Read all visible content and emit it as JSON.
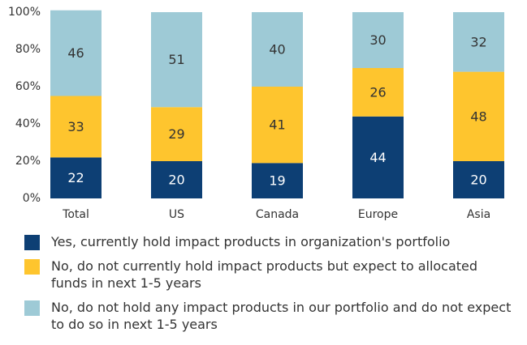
{
  "chart_data": {
    "type": "stacked_bar",
    "categories": [
      "Total",
      "US",
      "Canada",
      "Europe",
      "Asia"
    ],
    "series": [
      {
        "name": "Yes, currently hold impact products in organization's portfolio",
        "color": "#0d3f74",
        "values": [
          22,
          20,
          19,
          44,
          20
        ]
      },
      {
        "name": "No, do not currently hold impact products but expect to allocated funds in next 1-5 years",
        "color": "#fec52e",
        "values": [
          33,
          29,
          41,
          26,
          48
        ]
      },
      {
        "name": "No, do not hold any impact products in our portfolio and do not expect to do so in next 1-5 years",
        "color": "#9ecad6",
        "values": [
          46,
          51,
          40,
          30,
          32
        ]
      }
    ],
    "ylim": [
      0,
      100
    ],
    "yticks": [
      {
        "value": 0,
        "label": "0%"
      },
      {
        "value": 20,
        "label": "20%"
      },
      {
        "value": 40,
        "label": "40%"
      },
      {
        "value": 60,
        "label": "60%"
      },
      {
        "value": 80,
        "label": "80%"
      },
      {
        "value": 100,
        "label": "100%"
      }
    ],
    "legend": "bottom"
  }
}
